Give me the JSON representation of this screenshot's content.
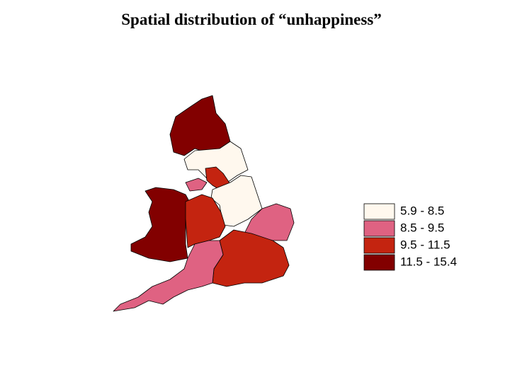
{
  "title": "Spatial distribution of “unhappiness”",
  "legend": {
    "items": [
      {
        "label": "5.9 - 8.5",
        "color": "#fff8ee"
      },
      {
        "label": "8.5 - 9.5",
        "color": "#df6282"
      },
      {
        "label": "9.5 - 11.5",
        "color": "#c42410"
      },
      {
        "label": "11.5 - 15.4",
        "color": "#820000"
      }
    ]
  }
}
